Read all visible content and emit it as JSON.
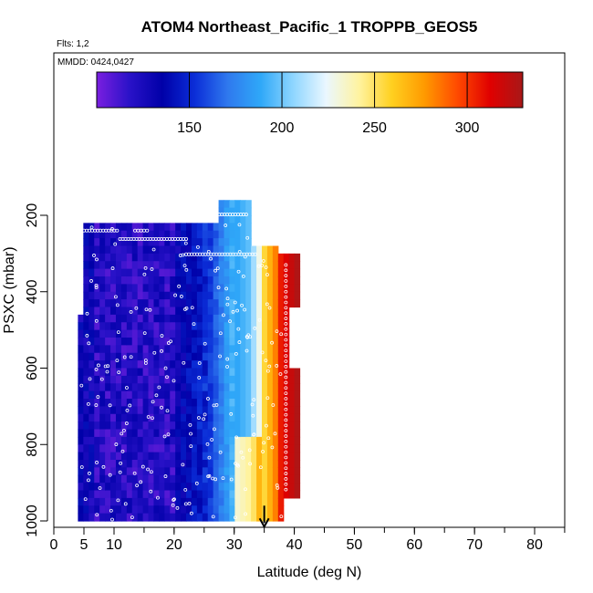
{
  "chart_data": {
    "type": "heatmap",
    "title": "ATOM4 Northeast_Pacific_1 TROPPB_GEOS5",
    "flights_label": "Flts: 1,2",
    "dates_label": "MMDD: 0424,0427",
    "xlabel": "Latitude (deg N)",
    "ylabel": "PSXC (mbar)",
    "xlim": [
      0,
      85
    ],
    "ylim": [
      1020,
      0
    ],
    "x_ticks": [
      0,
      5,
      10,
      20,
      30,
      40,
      50,
      60,
      70,
      80
    ],
    "y_ticks": [
      200,
      400,
      600,
      800,
      1000
    ],
    "colorbar": {
      "min": 100,
      "max": 330,
      "ticks": [
        150,
        200,
        250,
        300
      ],
      "colors": [
        "#7a1fe0",
        "#2a12c8",
        "#0000a8",
        "#0b2ed8",
        "#2f79ee",
        "#2fa8f8",
        "#8fd6ff",
        "#eaf7ff",
        "#fff3a0",
        "#ffd020",
        "#ff9a00",
        "#ff4a00",
        "#e00000",
        "#a81818"
      ]
    },
    "heatmap": {
      "lat_range": [
        4,
        40
      ],
      "p_range": [
        160,
        1000
      ],
      "value_low": 105,
      "value_high": 320
    },
    "arrow": {
      "x": 35,
      "y_from": 960,
      "y_to": 1015
    },
    "marker_tracks": [
      {
        "x1": 5,
        "x2": 10.5,
        "y": 240
      },
      {
        "x1": 13.5,
        "x2": 15.5,
        "y": 240
      },
      {
        "x1": 11,
        "x2": 22,
        "y": 262
      },
      {
        "x1": 27.5,
        "x2": 32,
        "y": 198
      },
      {
        "x1": 22,
        "x2": 33.5,
        "y": 302
      }
    ]
  }
}
